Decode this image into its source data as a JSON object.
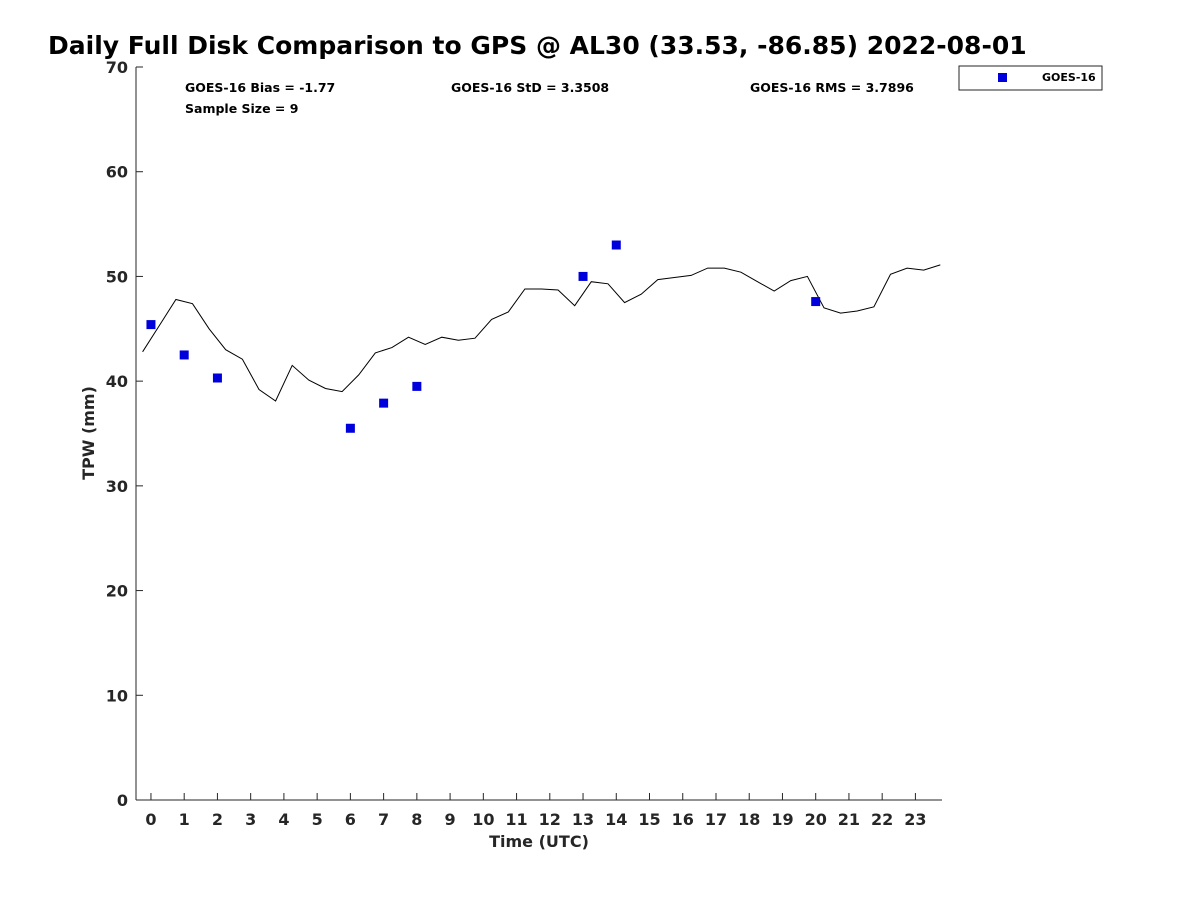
{
  "chart_data": {
    "type": "scatter",
    "title": "Daily Full Disk Comparison to GPS @ AL30 (33.53, -86.85) 2022-08-01",
    "xlabel": "Time (UTC)",
    "ylabel": "TPW (mm)",
    "xlim": [
      -0.45,
      23.8
    ],
    "ylim": [
      0,
      70
    ],
    "x_ticks": [
      "0",
      "1",
      "2",
      "3",
      "4",
      "5",
      "6",
      "7",
      "8",
      "9",
      "10",
      "11",
      "12",
      "13",
      "14",
      "15",
      "16",
      "17",
      "18",
      "19",
      "20",
      "21",
      "22",
      "23"
    ],
    "y_ticks": [
      "0",
      "10",
      "20",
      "30",
      "40",
      "50",
      "60",
      "70"
    ],
    "grid": false,
    "legend_position": "top-right, outside axes",
    "stats": {
      "bias": "GOES-16 Bias = -1.77",
      "std": "GOES-16 StD = 3.3508",
      "rms": "GOES-16 RMS = 3.7896",
      "sample": "Sample Size = 9"
    },
    "series": [
      {
        "name": "GOES-16",
        "type": "scatter",
        "marker": "square",
        "color": "#0000dd",
        "points": [
          [
            0,
            45.4
          ],
          [
            1,
            42.5
          ],
          [
            2,
            40.3
          ],
          [
            6,
            35.5
          ],
          [
            7,
            37.9
          ],
          [
            8,
            39.5
          ],
          [
            13,
            50.0
          ],
          [
            14,
            53.0
          ],
          [
            20,
            47.6
          ]
        ]
      },
      {
        "type": "line",
        "color": "#000000",
        "points": [
          [
            -0.25,
            42.8
          ],
          [
            0.25,
            45.3
          ],
          [
            0.75,
            47.8
          ],
          [
            1.25,
            47.4
          ],
          [
            1.75,
            45.0
          ],
          [
            2.25,
            43.0
          ],
          [
            2.75,
            42.1
          ],
          [
            3.25,
            39.2
          ],
          [
            3.75,
            38.1
          ],
          [
            4.25,
            41.5
          ],
          [
            4.75,
            40.1
          ],
          [
            5.25,
            39.3
          ],
          [
            5.75,
            39.0
          ],
          [
            6.25,
            40.6
          ],
          [
            6.75,
            42.7
          ],
          [
            7.25,
            43.2
          ],
          [
            7.75,
            44.2
          ],
          [
            8.25,
            43.5
          ],
          [
            8.75,
            44.2
          ],
          [
            9.25,
            43.9
          ],
          [
            9.75,
            44.1
          ],
          [
            10.25,
            45.9
          ],
          [
            10.75,
            46.6
          ],
          [
            11.25,
            48.8
          ],
          [
            11.75,
            48.8
          ],
          [
            12.25,
            48.7
          ],
          [
            12.75,
            47.2
          ],
          [
            13.25,
            49.5
          ],
          [
            13.75,
            49.3
          ],
          [
            14.25,
            47.5
          ],
          [
            14.75,
            48.3
          ],
          [
            15.25,
            49.7
          ],
          [
            15.75,
            49.9
          ],
          [
            16.25,
            50.1
          ],
          [
            16.75,
            50.8
          ],
          [
            17.25,
            50.8
          ],
          [
            17.75,
            50.4
          ],
          [
            18.25,
            49.5
          ],
          [
            18.75,
            48.6
          ],
          [
            19.25,
            49.6
          ],
          [
            19.75,
            50.0
          ],
          [
            20.25,
            47.0
          ],
          [
            20.75,
            46.5
          ],
          [
            21.25,
            46.7
          ],
          [
            21.75,
            47.1
          ],
          [
            22.25,
            50.2
          ],
          [
            22.75,
            50.8
          ],
          [
            23.25,
            50.6
          ],
          [
            23.75,
            51.1
          ]
        ]
      }
    ]
  }
}
